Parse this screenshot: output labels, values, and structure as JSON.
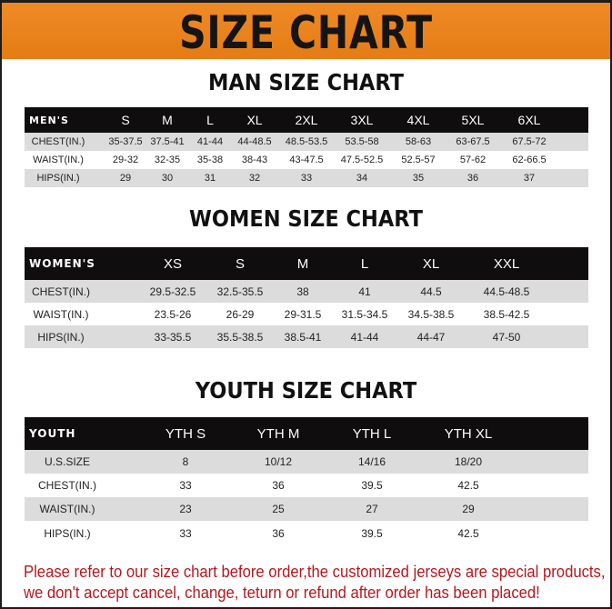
{
  "banner_title": "SIZE CHART",
  "colors": {
    "banner": "#e98318",
    "header_row": "#0f0d0d",
    "stripe": "#dcdcdc",
    "note": "#b3191e"
  },
  "men": {
    "title": "MAN SIZE CHART",
    "header": [
      "MEN'S",
      "S",
      "M",
      "L",
      "XL",
      "2XL",
      "3XL",
      "4XL",
      "5XL",
      "6XL"
    ],
    "rows": [
      [
        "CHEST(IN.)",
        "35-37.5",
        "37.5-41",
        "41-44",
        "44-48.5",
        "48.5-53.5",
        "53.5-58",
        "58-63",
        "63-67.5",
        "67.5-72"
      ],
      [
        "WAIST(IN.)",
        "29-32",
        "32-35",
        "35-38",
        "38-43",
        "43-47.5",
        "47.5-52.5",
        "52.5-57",
        "57-62",
        "62-66.5"
      ],
      [
        "HIPS(IN.)",
        "29",
        "30",
        "31",
        "32",
        "33",
        "34",
        "35",
        "36",
        "37"
      ]
    ]
  },
  "women": {
    "title": "WOMEN SIZE CHART",
    "header": [
      "WOMEN'S",
      "XS",
      "S",
      "M",
      "L",
      "XL",
      "XXL"
    ],
    "rows": [
      [
        "CHEST(IN.)",
        "29.5-32.5",
        "32.5-35.5",
        "38",
        "41",
        "44.5",
        "44.5-48.5"
      ],
      [
        "WAIST(IN.)",
        "23.5-26",
        "26-29",
        "29-31.5",
        "31.5-34.5",
        "34.5-38.5",
        "38.5-42.5"
      ],
      [
        "HIPS(IN.)",
        "33-35.5",
        "35.5-38.5",
        "38.5-41",
        "41-44",
        "44-47",
        "47-50"
      ]
    ]
  },
  "youth": {
    "title": "YOUTH SIZE CHART",
    "header": [
      "YOUTH",
      "YTH S",
      "YTH M",
      "YTH L",
      "YTH XL"
    ],
    "rows": [
      [
        "U.S.SIZE",
        "8",
        "10/12",
        "14/16",
        "18/20"
      ],
      [
        "CHEST(IN.)",
        "33",
        "36",
        "39.5",
        "42.5"
      ],
      [
        "WAIST(IN.)",
        "23",
        "25",
        "27",
        "29"
      ],
      [
        "HIPS(IN.)",
        "33",
        "36",
        "39.5",
        "42.5"
      ]
    ]
  },
  "note_lines": [
    "Please refer to our size chart before order,the customized jerseys are special products,",
    "we don't accept cancel, change, teturn or refund after order has been placed!"
  ]
}
